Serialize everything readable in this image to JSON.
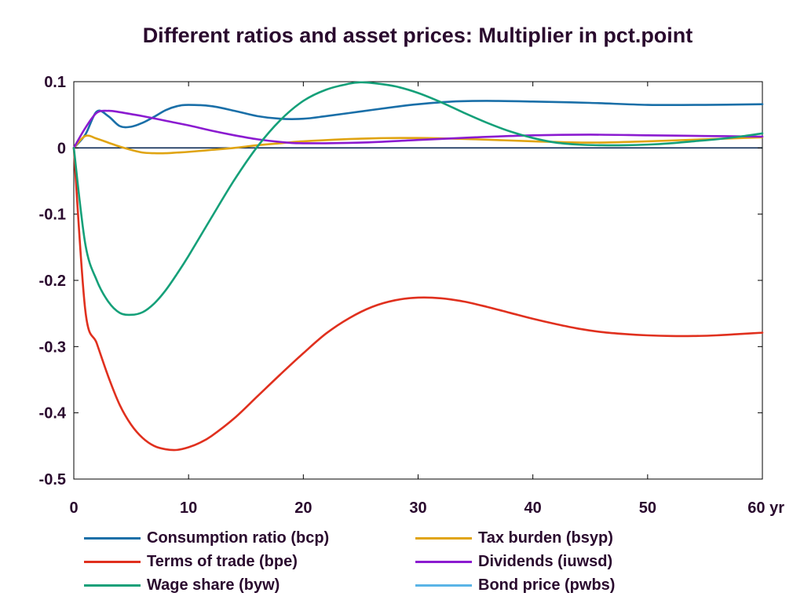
{
  "chart_data": {
    "type": "line",
    "title": "Different ratios and asset prices: Multiplier in pct.point",
    "xlabel": "",
    "ylabel": "",
    "x_unit_label": "yr",
    "xlim": [
      0,
      60
    ],
    "ylim": [
      -0.5,
      0.1
    ],
    "x_ticks": [
      0,
      10,
      20,
      30,
      40,
      50,
      60
    ],
    "x_tick_labels": [
      "0",
      "10",
      "20",
      "30",
      "40",
      "50",
      "60 yr"
    ],
    "y_ticks": [
      0.1,
      0,
      -0.1,
      -0.2,
      -0.3,
      -0.4,
      -0.5
    ],
    "y_tick_labels": [
      "0.1",
      "0",
      "-0.1",
      "-0.2",
      "-0.3",
      "-0.4",
      "-0.5"
    ],
    "grid": false,
    "zero_line": true,
    "legend_position": "bottom",
    "series": [
      {
        "name": "Consumption ratio (bcp)",
        "color": "#1a6fa8",
        "x": [
          0,
          1,
          2,
          3,
          4,
          5,
          6,
          7,
          8,
          9,
          10,
          12,
          14,
          16,
          18,
          20,
          22,
          25,
          28,
          30,
          33,
          36,
          40,
          45,
          50,
          55,
          60
        ],
        "y": [
          0,
          0.02,
          0.055,
          0.048,
          0.033,
          0.032,
          0.038,
          0.047,
          0.057,
          0.063,
          0.065,
          0.063,
          0.056,
          0.048,
          0.044,
          0.044,
          0.048,
          0.055,
          0.062,
          0.066,
          0.07,
          0.071,
          0.07,
          0.068,
          0.065,
          0.065,
          0.066
        ]
      },
      {
        "name": "Tax burden (bsyp)",
        "color": "#e0a412",
        "x": [
          0,
          1,
          2,
          3,
          4,
          5,
          6,
          7,
          8,
          9,
          10,
          12,
          14,
          16,
          18,
          20,
          25,
          30,
          35,
          40,
          45,
          50,
          55,
          60
        ],
        "y": [
          0,
          0.018,
          0.014,
          0.008,
          0.002,
          -0.003,
          -0.007,
          -0.008,
          -0.008,
          -0.007,
          -0.006,
          -0.003,
          0,
          0.004,
          0.007,
          0.01,
          0.014,
          0.015,
          0.013,
          0.01,
          0.008,
          0.01,
          0.013,
          0.016
        ]
      },
      {
        "name": "Terms of trade (bpe)",
        "color": "#e0301e",
        "x": [
          0,
          1,
          2,
          3,
          4,
          5,
          6,
          7,
          8,
          9,
          10,
          11,
          12,
          14,
          16,
          18,
          20,
          22,
          24,
          26,
          28,
          30,
          32,
          34,
          36,
          38,
          40,
          42,
          44,
          46,
          48,
          50,
          52,
          54,
          56,
          58,
          60
        ],
        "y": [
          0,
          -0.245,
          -0.295,
          -0.345,
          -0.388,
          -0.418,
          -0.438,
          -0.45,
          -0.455,
          -0.456,
          -0.452,
          -0.445,
          -0.435,
          -0.408,
          -0.375,
          -0.342,
          -0.31,
          -0.28,
          -0.257,
          -0.24,
          -0.23,
          -0.226,
          -0.227,
          -0.232,
          -0.24,
          -0.249,
          -0.258,
          -0.266,
          -0.273,
          -0.278,
          -0.281,
          -0.283,
          -0.284,
          -0.284,
          -0.283,
          -0.281,
          -0.279
        ]
      },
      {
        "name": "Dividends (iuwsd)",
        "color": "#8b1bd0",
        "x": [
          0,
          1,
          2,
          3,
          4,
          5,
          6,
          8,
          10,
          12,
          14,
          16,
          18,
          20,
          25,
          30,
          35,
          40,
          45,
          50,
          55,
          60
        ],
        "y": [
          0,
          0.03,
          0.053,
          0.056,
          0.054,
          0.051,
          0.048,
          0.041,
          0.034,
          0.026,
          0.019,
          0.013,
          0.009,
          0.007,
          0.008,
          0.012,
          0.016,
          0.019,
          0.02,
          0.019,
          0.018,
          0.017
        ]
      },
      {
        "name": "Wage share (byw)",
        "color": "#15a079",
        "x": [
          0,
          1,
          2,
          3,
          4,
          5,
          6,
          7,
          8,
          9,
          10,
          12,
          14,
          16,
          18,
          20,
          22,
          24,
          25,
          26,
          28,
          30,
          32,
          34,
          36,
          38,
          40,
          42,
          44,
          46,
          48,
          50,
          52,
          54,
          56,
          58,
          60
        ],
        "y": [
          0,
          -0.145,
          -0.2,
          -0.232,
          -0.249,
          -0.252,
          -0.248,
          -0.235,
          -0.215,
          -0.19,
          -0.163,
          -0.105,
          -0.048,
          0.002,
          0.042,
          0.071,
          0.088,
          0.097,
          0.099,
          0.098,
          0.093,
          0.083,
          0.069,
          0.053,
          0.038,
          0.025,
          0.015,
          0.008,
          0.005,
          0.004,
          0.004,
          0.005,
          0.007,
          0.01,
          0.013,
          0.017,
          0.022
        ]
      },
      {
        "name": "Bond price (pwbs)",
        "color": "#5ab4e6",
        "x": [],
        "y": []
      }
    ]
  }
}
